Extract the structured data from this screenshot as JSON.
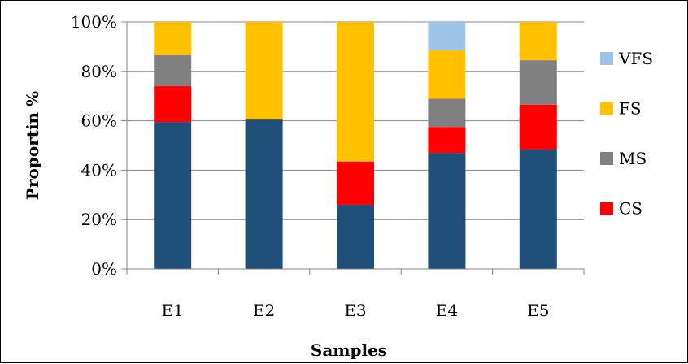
{
  "chart_data": {
    "type": "bar",
    "stacked": true,
    "categories": [
      "E1",
      "E2",
      "E3",
      "E4",
      "E5"
    ],
    "series": [
      {
        "name": "",
        "color": "#1f4e79",
        "values": [
          59.5,
          60.5,
          26,
          47,
          48.5
        ]
      },
      {
        "name": "CS",
        "color": "#ff0000",
        "values": [
          14.5,
          0,
          17.5,
          10.5,
          18
        ]
      },
      {
        "name": "MS",
        "color": "#808080",
        "values": [
          12.5,
          0,
          0,
          11.5,
          18
        ]
      },
      {
        "name": "FS",
        "color": "#ffc000",
        "values": [
          13.5,
          39.5,
          56.5,
          19.5,
          15.5
        ]
      },
      {
        "name": "VFS",
        "color": "#9dc3e6",
        "values": [
          0,
          0,
          0,
          11.5,
          0
        ]
      }
    ],
    "ylim": [
      0,
      100
    ],
    "yticks": [
      "0%",
      "20%",
      "40%",
      "60%",
      "80%",
      "100%"
    ],
    "title": "",
    "xlabel": "Samples",
    "ylabel": "Proportin %",
    "legend_position": "right",
    "legend_order": [
      "VFS",
      "FS",
      "MS",
      "CS"
    ],
    "grid": true
  }
}
